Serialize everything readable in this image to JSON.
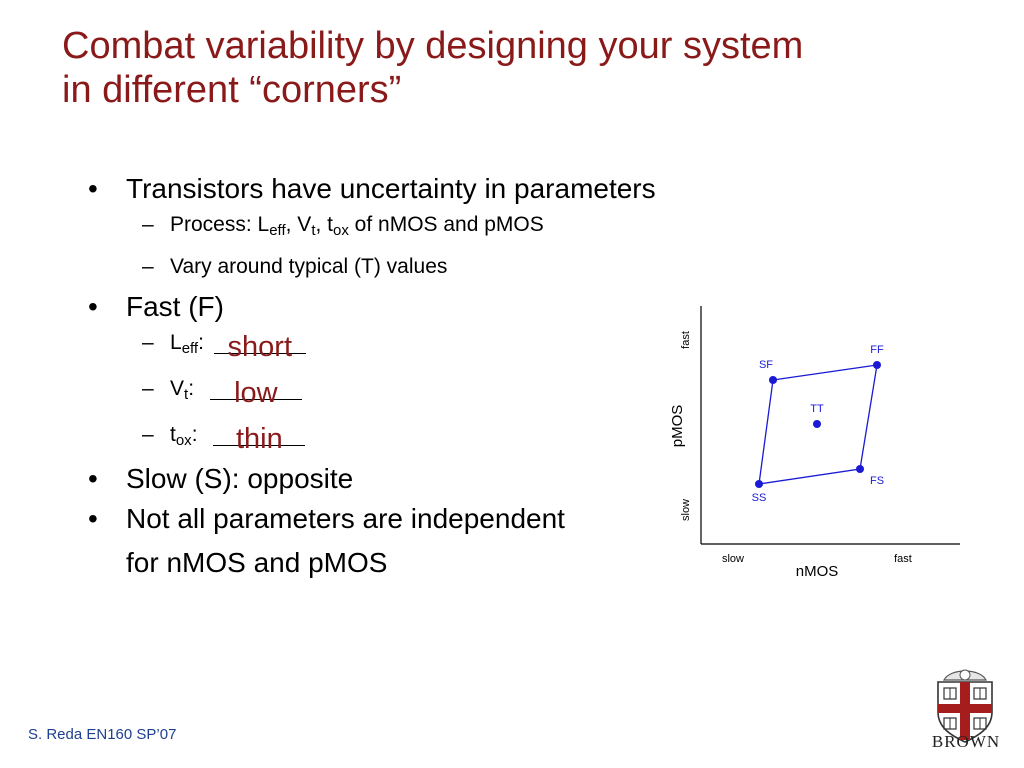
{
  "slide": {
    "title_line1": "Combat variability by designing your system",
    "title_line2": "in different “corners”"
  },
  "bullets": {
    "b1": "Transistors have uncertainty in parameters",
    "process": {
      "prefix": "Process: L",
      "sub1": "eff",
      "mid1": ", V",
      "sub2": "t",
      "mid2": ", t",
      "sub3": "ox",
      "suffix": " of nMOS and pMOS"
    },
    "vary": "Vary around typical (T) values",
    "fast": "Fast (F)",
    "leff": {
      "prefix": "L",
      "sub": "eff",
      "colon": ":",
      "answer": "short"
    },
    "vt": {
      "prefix": "V",
      "sub": "t",
      "colon": ":",
      "answer": "low"
    },
    "tox": {
      "prefix": "t",
      "sub": "ox",
      "colon": ":",
      "answer": "thin"
    },
    "slow": "Slow (S): opposite",
    "independent_line1": "Not all parameters are independent",
    "independent_line2": "for nMOS and pMOS"
  },
  "diagram": {
    "x_label": "nMOS",
    "y_label": "pMOS",
    "x_tick_low": "slow",
    "x_tick_high": "fast",
    "y_tick_low": "slow",
    "y_tick_high": "fast",
    "point_color": "#1a1ad6",
    "points": [
      {
        "label": "SF"
      },
      {
        "label": "FF"
      },
      {
        "label": "TT"
      },
      {
        "label": "SS"
      },
      {
        "label": "FS"
      }
    ]
  },
  "footer": {
    "text": "S. Reda EN160 SP’07",
    "logo_text": "BROWN"
  },
  "colors": {
    "title": "#8a1a1a",
    "answer": "#8a1a1a",
    "footer": "#1f3f8f"
  }
}
